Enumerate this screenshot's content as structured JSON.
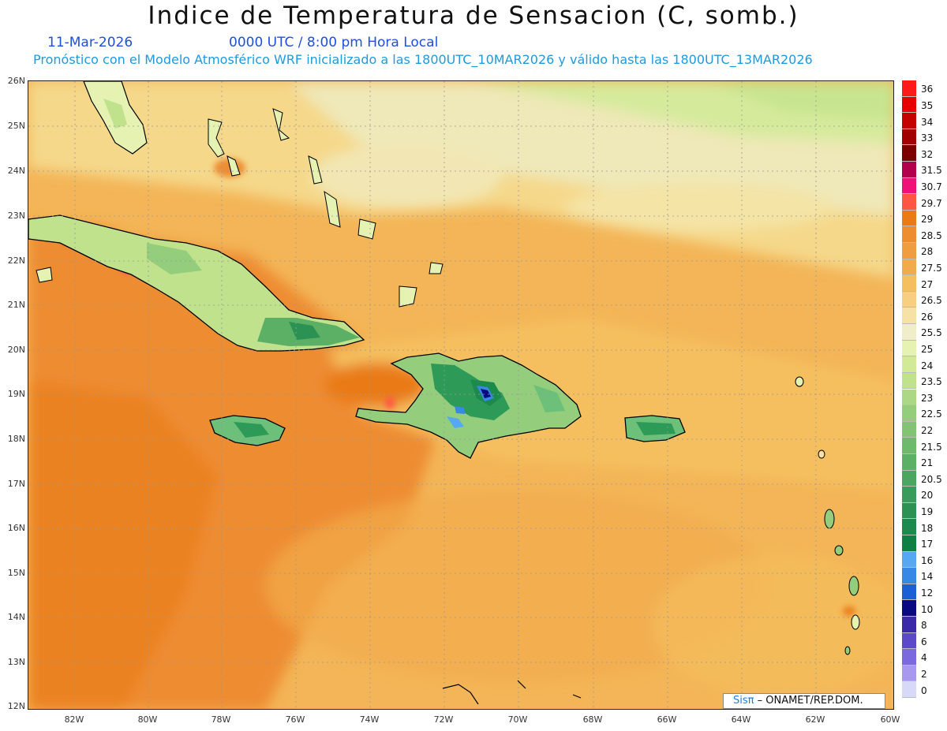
{
  "header": {
    "title": "Indice de Temperatura de Sensacion (C, somb.)",
    "date": "11-Mar-2026",
    "time": "0000 UTC / 8:00 pm Hora Local",
    "model_note": "Pronóstico con el Modelo Atmosférico WRF inicializado a las 1800UTC_10MAR2026 y válido hasta las  1800UTC_13MAR2026"
  },
  "map": {
    "lat_labels": [
      "26N",
      "25N",
      "24N",
      "23N",
      "22N",
      "21N",
      "20N",
      "19N",
      "18N",
      "17N",
      "16N",
      "15N",
      "14N",
      "13N",
      "12N"
    ],
    "lon_labels": [
      "82W",
      "80W",
      "78W",
      "76W",
      "74W",
      "72W",
      "70W",
      "68W",
      "66W",
      "64W",
      "62W",
      "60W"
    ],
    "sea_color": "#f3b557",
    "land_colors": [
      "#2e9a58",
      "#6dc07a",
      "#b8e08e"
    ]
  },
  "legend": {
    "items": [
      {
        "label": "36",
        "color": "#ff1a1a"
      },
      {
        "label": "35",
        "color": "#e60000"
      },
      {
        "label": "34",
        "color": "#c40000"
      },
      {
        "label": "33",
        "color": "#a00000"
      },
      {
        "label": "32",
        "color": "#7d0000"
      },
      {
        "label": "31.5",
        "color": "#b3004d"
      },
      {
        "label": "30.7",
        "color": "#ee1177"
      },
      {
        "label": "29.7",
        "color": "#ff5544"
      },
      {
        "label": "29",
        "color": "#e97a14"
      },
      {
        "label": "28.5",
        "color": "#ee8c30"
      },
      {
        "label": "28",
        "color": "#f09c40"
      },
      {
        "label": "27.5",
        "color": "#f2ab4c"
      },
      {
        "label": "27",
        "color": "#f5bf5e"
      },
      {
        "label": "26.5",
        "color": "#f6d080"
      },
      {
        "label": "26",
        "color": "#f5e2a4"
      },
      {
        "label": "25.5",
        "color": "#efeec8"
      },
      {
        "label": "25",
        "color": "#e6f2b2"
      },
      {
        "label": "24",
        "color": "#d2ea98"
      },
      {
        "label": "23.5",
        "color": "#c0e28c"
      },
      {
        "label": "23",
        "color": "#aad884"
      },
      {
        "label": "22.5",
        "color": "#94ce7c"
      },
      {
        "label": "22",
        "color": "#82c474"
      },
      {
        "label": "21.5",
        "color": "#6eba6c"
      },
      {
        "label": "21",
        "color": "#5cb066"
      },
      {
        "label": "20.5",
        "color": "#4aa660"
      },
      {
        "label": "20",
        "color": "#3a9c5a"
      },
      {
        "label": "19",
        "color": "#2c9254"
      },
      {
        "label": "18",
        "color": "#1c8a4c"
      },
      {
        "label": "17",
        "color": "#0e8044"
      },
      {
        "label": "16",
        "color": "#56a8f2"
      },
      {
        "label": "14",
        "color": "#3888e6"
      },
      {
        "label": "12",
        "color": "#1a60d4"
      },
      {
        "label": "10",
        "color": "#0a0a80"
      },
      {
        "label": "8",
        "color": "#3a2aa8"
      },
      {
        "label": "6",
        "color": "#5a4ac8"
      },
      {
        "label": "4",
        "color": "#7a6ade"
      },
      {
        "label": "2",
        "color": "#a898f0"
      },
      {
        "label": "0",
        "color": "#d8d8f8"
      }
    ]
  },
  "credit": {
    "sis": "Sisπ",
    "text": " ONAMET/REP.DOM."
  }
}
